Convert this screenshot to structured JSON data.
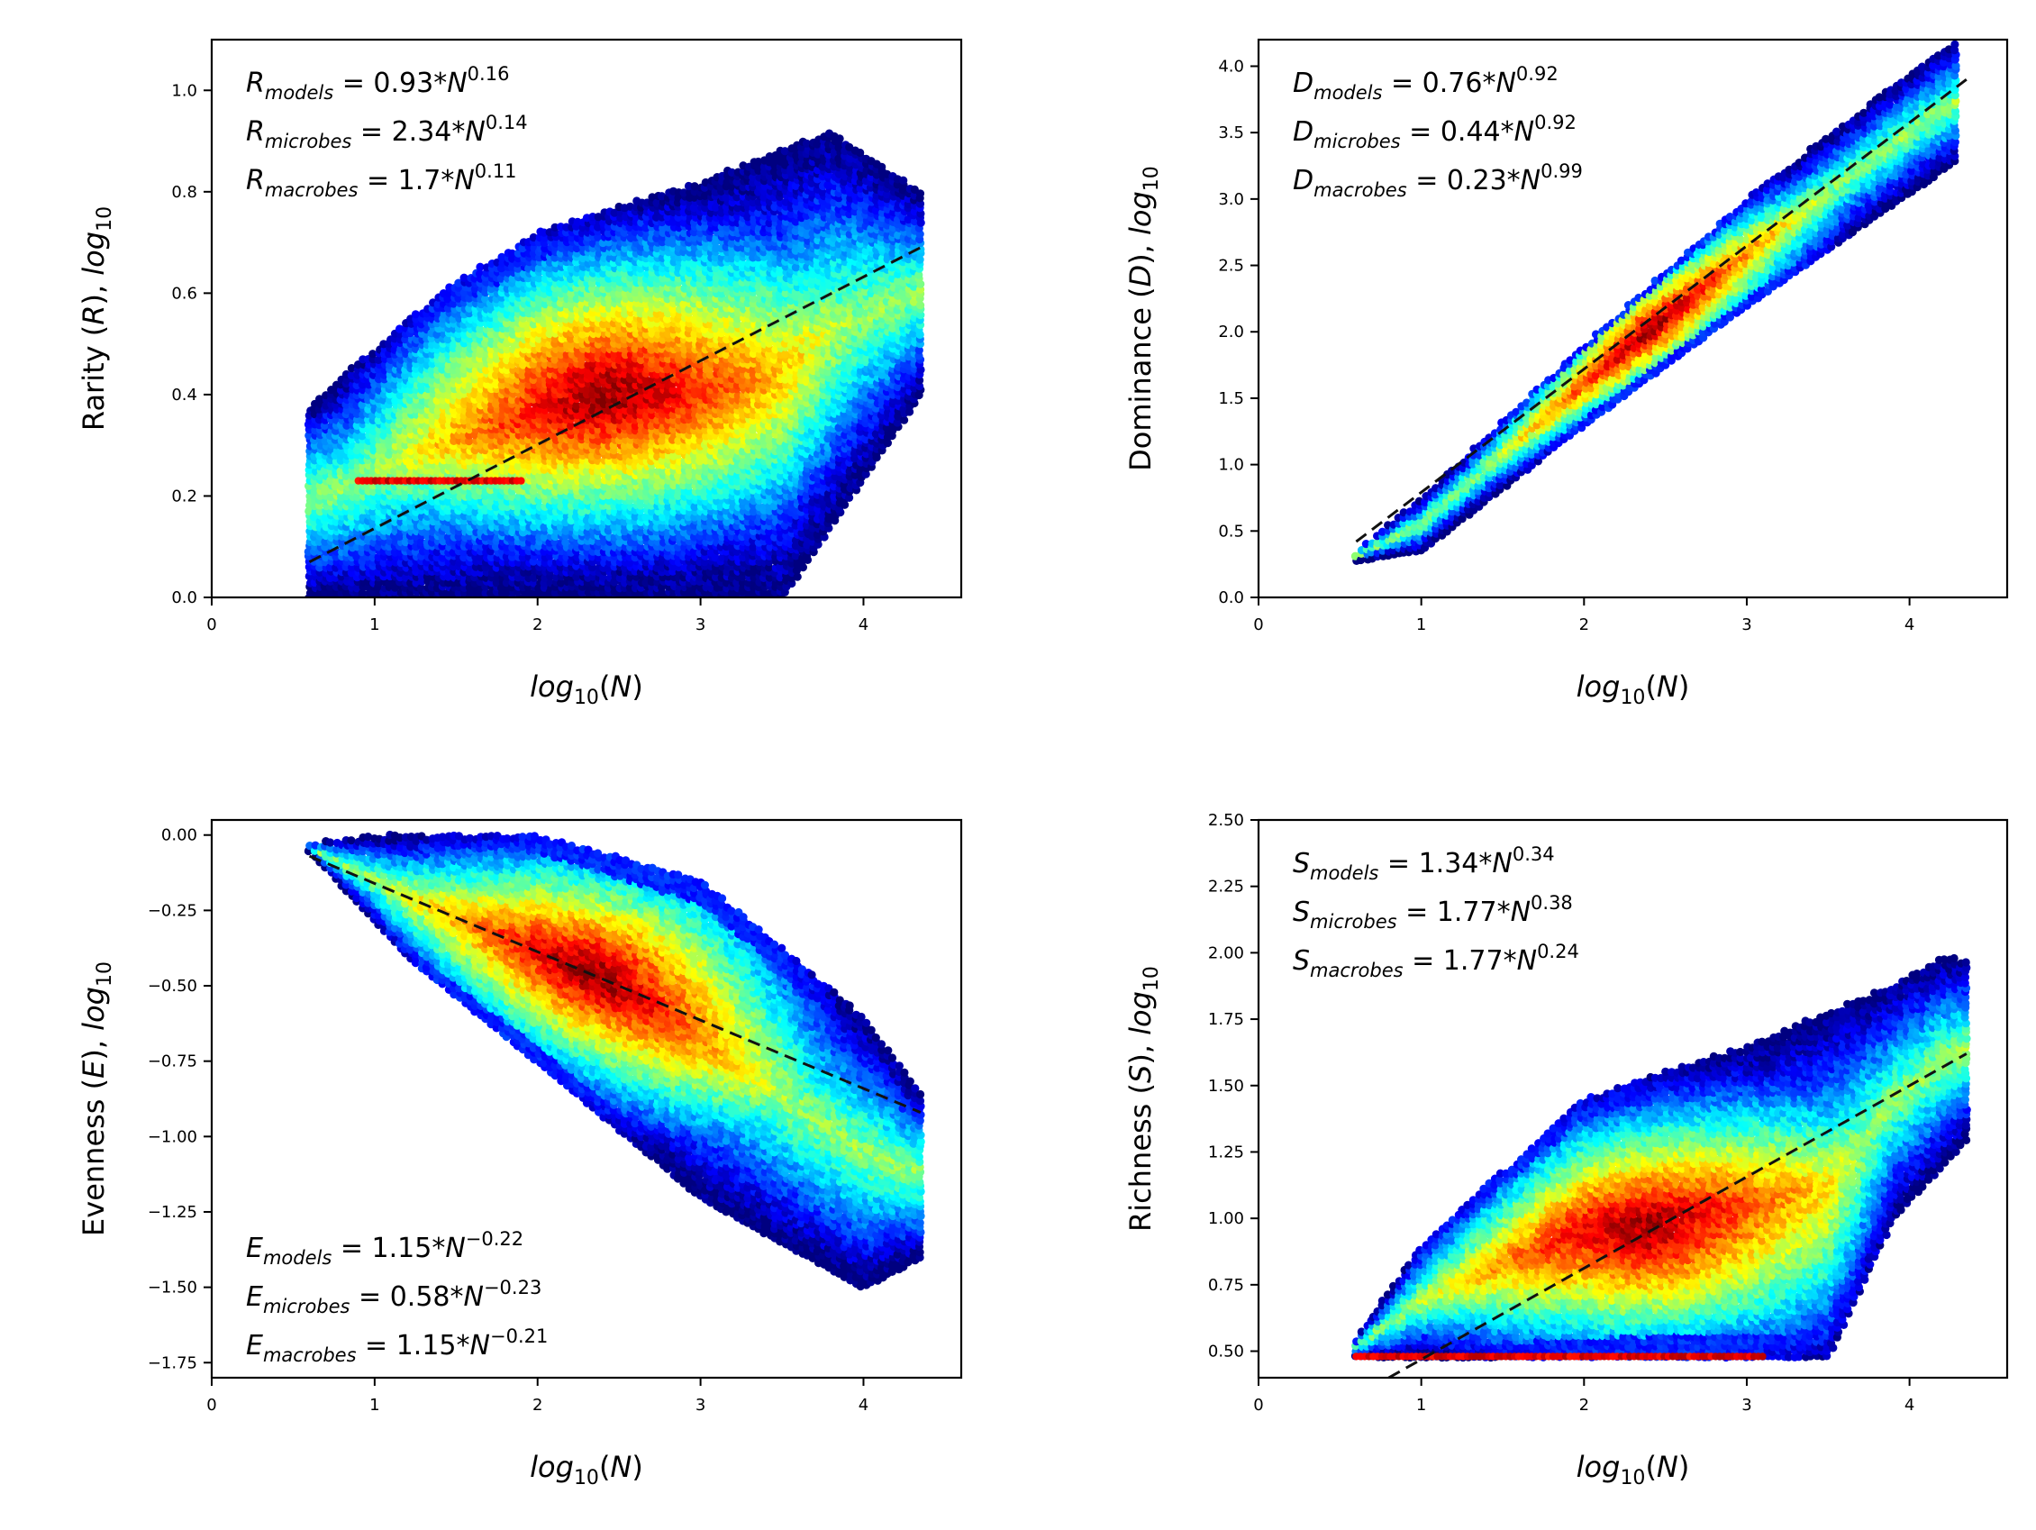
{
  "chart_data": [
    {
      "type": "scatter",
      "style": "hexbin density (jet colormap)",
      "xlabel": "log10(N)",
      "ylabel": "Rarity (R), log10",
      "ylabel_parts": {
        "name": "Rarity",
        "sym": "R",
        "sub": "10"
      },
      "xlim": [
        0,
        4.6
      ],
      "ylim": [
        0,
        1.1
      ],
      "xticks": [
        "0",
        "1",
        "2",
        "3",
        "4"
      ],
      "xtick_values": [
        0,
        1,
        2,
        3,
        4
      ],
      "yticks": [
        "0.0",
        "0.2",
        "0.4",
        "0.6",
        "0.8",
        "1.0"
      ],
      "ytick_values": [
        0,
        0.2,
        0.4,
        0.6,
        0.8,
        1.0
      ],
      "fit_line": {
        "x": [
          0.6,
          4.35
        ],
        "y": [
          0.07,
          0.69
        ]
      },
      "equations": [
        {
          "sym": "R",
          "sub": "models",
          "coef": "0.93",
          "exp": "0.16"
        },
        {
          "sym": "R",
          "sub": "microbes",
          "coef": "2.34",
          "exp": "0.14"
        },
        {
          "sym": "R",
          "sub": "macrobes",
          "coef": "1.7",
          "exp": "0.11"
        }
      ],
      "equations_position": "top-left",
      "density": {
        "center": [
          2.4,
          0.43
        ],
        "x_range": [
          0.6,
          4.35
        ],
        "band_low": [
          [
            0.6,
            0.0
          ],
          [
            2.0,
            0.0
          ],
          [
            3.5,
            0.0
          ],
          [
            4.35,
            0.4
          ]
        ],
        "band_high": [
          [
            0.6,
            0.38
          ],
          [
            1.4,
            0.6
          ],
          [
            2.0,
            0.72
          ],
          [
            3.0,
            0.82
          ],
          [
            3.8,
            0.92
          ],
          [
            4.35,
            0.8
          ]
        ],
        "ridge": {
          "x": [
            0.9,
            1.9
          ],
          "y": 0.23
        }
      }
    },
    {
      "type": "scatter",
      "style": "hexbin density (jet colormap)",
      "xlabel": "log10(N)",
      "ylabel": "Dominance (D), log10",
      "ylabel_parts": {
        "name": "Dominance",
        "sym": "D",
        "sub": "10"
      },
      "xlim": [
        0,
        4.6
      ],
      "ylim": [
        0,
        4.2
      ],
      "xticks": [
        "0",
        "1",
        "2",
        "3",
        "4"
      ],
      "xtick_values": [
        0,
        1,
        2,
        3,
        4
      ],
      "yticks": [
        "0.0",
        "0.5",
        "1.0",
        "1.5",
        "2.0",
        "2.5",
        "3.0",
        "3.5",
        "4.0"
      ],
      "ytick_values": [
        0,
        0.5,
        1.0,
        1.5,
        2.0,
        2.5,
        3.0,
        3.5,
        4.0
      ],
      "fit_line": {
        "x": [
          0.6,
          4.35
        ],
        "y": [
          0.42,
          3.9
        ]
      },
      "equations": [
        {
          "sym": "D",
          "sub": "models",
          "coef": "0.76",
          "exp": "0.92"
        },
        {
          "sym": "D",
          "sub": "microbes",
          "coef": "0.44",
          "exp": "0.92"
        },
        {
          "sym": "D",
          "sub": "macrobes",
          "coef": "0.23",
          "exp": "0.99"
        }
      ],
      "equations_position": "top-left",
      "density": {
        "center": [
          2.3,
          2.1
        ],
        "x_range": [
          0.6,
          4.3
        ],
        "band_low": [
          [
            0.6,
            0.28
          ],
          [
            1.0,
            0.35
          ],
          [
            2.0,
            1.3
          ],
          [
            3.0,
            2.2
          ],
          [
            4.3,
            3.3
          ]
        ],
        "band_high": [
          [
            0.6,
            0.35
          ],
          [
            1.0,
            0.75
          ],
          [
            2.0,
            1.9
          ],
          [
            3.0,
            3.0
          ],
          [
            4.0,
            3.95
          ],
          [
            4.3,
            4.2
          ]
        ]
      }
    },
    {
      "type": "scatter",
      "style": "hexbin density (jet colormap)",
      "xlabel": "log10(N)",
      "ylabel": "Evenness (E), log10",
      "ylabel_parts": {
        "name": "Evenness",
        "sym": "E",
        "sub": "10"
      },
      "xlim": [
        0,
        4.6
      ],
      "ylim": [
        -1.8,
        0.05
      ],
      "xticks": [
        "0",
        "1",
        "2",
        "3",
        "4"
      ],
      "xtick_values": [
        0,
        1,
        2,
        3,
        4
      ],
      "yticks": [
        "0.00",
        "−0.25",
        "−0.50",
        "−0.75",
        "−1.00",
        "−1.25",
        "−1.50",
        "−1.75"
      ],
      "ytick_values": [
        0,
        -0.25,
        -0.5,
        -0.75,
        -1.0,
        -1.25,
        -1.5,
        -1.75
      ],
      "fit_line": {
        "x": [
          0.6,
          4.35
        ],
        "y": [
          -0.07,
          -0.92
        ]
      },
      "equations": [
        {
          "sym": "E",
          "sub": "models",
          "coef": "1.15",
          "exp": "−0.22"
        },
        {
          "sym": "E",
          "sub": "microbes",
          "coef": "0.58",
          "exp": "−0.23"
        },
        {
          "sym": "E",
          "sub": "macrobes",
          "coef": "1.15",
          "exp": "−0.21"
        }
      ],
      "equations_position": "bottom-left",
      "density": {
        "center": [
          2.4,
          -0.42
        ],
        "x_range": [
          0.6,
          4.35
        ],
        "band_low": [
          [
            0.6,
            -0.05
          ],
          [
            1.2,
            -0.4
          ],
          [
            2.0,
            -0.75
          ],
          [
            3.0,
            -1.2
          ],
          [
            4.0,
            -1.5
          ],
          [
            4.35,
            -1.4
          ]
        ],
        "band_high": [
          [
            0.6,
            -0.03
          ],
          [
            1.0,
            0.0
          ],
          [
            2.0,
            0.0
          ],
          [
            3.0,
            -0.15
          ],
          [
            4.0,
            -0.6
          ],
          [
            4.35,
            -0.85
          ]
        ]
      }
    },
    {
      "type": "scatter",
      "style": "hexbin density (jet colormap)",
      "xlabel": "log10(N)",
      "ylabel": "Richness (S), log10",
      "ylabel_parts": {
        "name": "Richness",
        "sym": "S",
        "sub": "10"
      },
      "xlim": [
        0,
        4.6
      ],
      "ylim": [
        0.4,
        2.5
      ],
      "xticks": [
        "0",
        "1",
        "2",
        "3",
        "4"
      ],
      "xtick_values": [
        0,
        1,
        2,
        3,
        4
      ],
      "yticks": [
        "0.50",
        "0.75",
        "1.00",
        "1.25",
        "1.50",
        "1.75",
        "2.00",
        "2.25",
        "2.50"
      ],
      "ytick_values": [
        0.5,
        0.75,
        1.0,
        1.25,
        1.5,
        1.75,
        2.0,
        2.25,
        2.5
      ],
      "fit_line": {
        "x": [
          0.8,
          4.35
        ],
        "y": [
          0.4,
          1.62
        ]
      },
      "equations": [
        {
          "sym": "S",
          "sub": "models",
          "coef": "1.34",
          "exp": "0.34"
        },
        {
          "sym": "S",
          "sub": "microbes",
          "coef": "1.77",
          "exp": "0.38"
        },
        {
          "sym": "S",
          "sub": "macrobes",
          "coef": "1.77",
          "exp": "0.24"
        }
      ],
      "equations_position": "top-left",
      "density": {
        "center": [
          2.4,
          0.9
        ],
        "x_range": [
          0.6,
          4.35
        ],
        "band_low": [
          [
            0.6,
            0.48
          ],
          [
            3.5,
            0.48
          ],
          [
            3.9,
            1.0
          ],
          [
            4.35,
            1.3
          ]
        ],
        "band_high": [
          [
            0.6,
            0.55
          ],
          [
            1.0,
            0.9
          ],
          [
            2.0,
            1.45
          ],
          [
            3.0,
            1.65
          ],
          [
            3.8,
            1.85
          ],
          [
            4.2,
            1.98
          ]
        ],
        "ridge": {
          "x": [
            0.6,
            3.1
          ],
          "y": 0.48
        }
      }
    }
  ]
}
